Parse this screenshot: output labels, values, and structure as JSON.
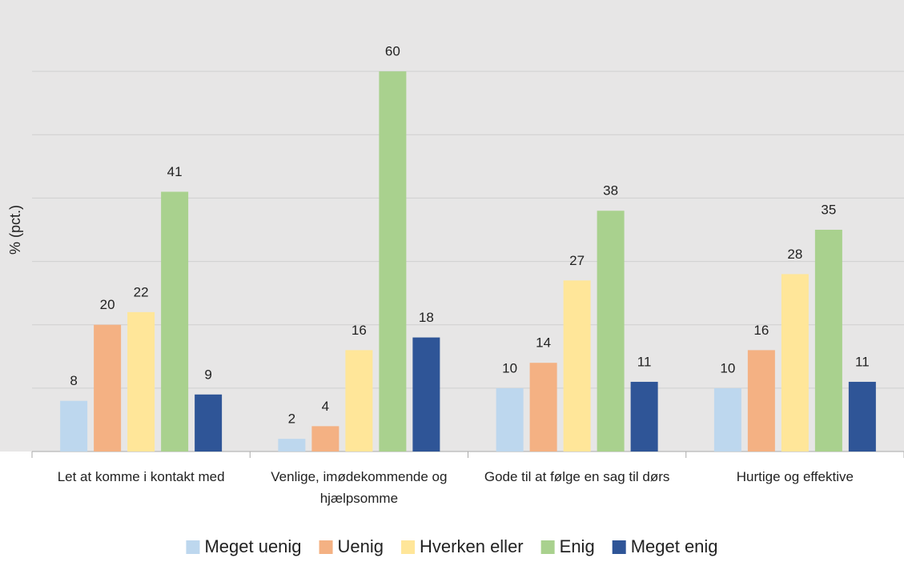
{
  "chart_data": {
    "type": "bar",
    "y_label": "% (pct.)",
    "categories": [
      "Let at komme i kontakt med",
      "Venlige, imødekommende og hjælpsomme",
      "Gode til at følge en sag til dørs",
      "Hurtige og effektive"
    ],
    "series": [
      {
        "name": "Meget uenig",
        "color": "#bdd7ee",
        "values": [
          8,
          2,
          10,
          10
        ]
      },
      {
        "name": "Uenig",
        "color": "#f4b183",
        "values": [
          20,
          4,
          14,
          16
        ]
      },
      {
        "name": "Hverken eller",
        "color": "#ffe699",
        "values": [
          22,
          16,
          27,
          28
        ]
      },
      {
        "name": "Enig",
        "color": "#a9d18e",
        "values": [
          41,
          60,
          38,
          35
        ]
      },
      {
        "name": "Meget enig",
        "color": "#2f5597",
        "values": [
          9,
          18,
          11,
          11
        ]
      }
    ],
    "ylim": [
      0,
      70
    ],
    "yticks": [
      10,
      20,
      30,
      40,
      50,
      60
    ],
    "grid": true,
    "legend": "bottom"
  }
}
